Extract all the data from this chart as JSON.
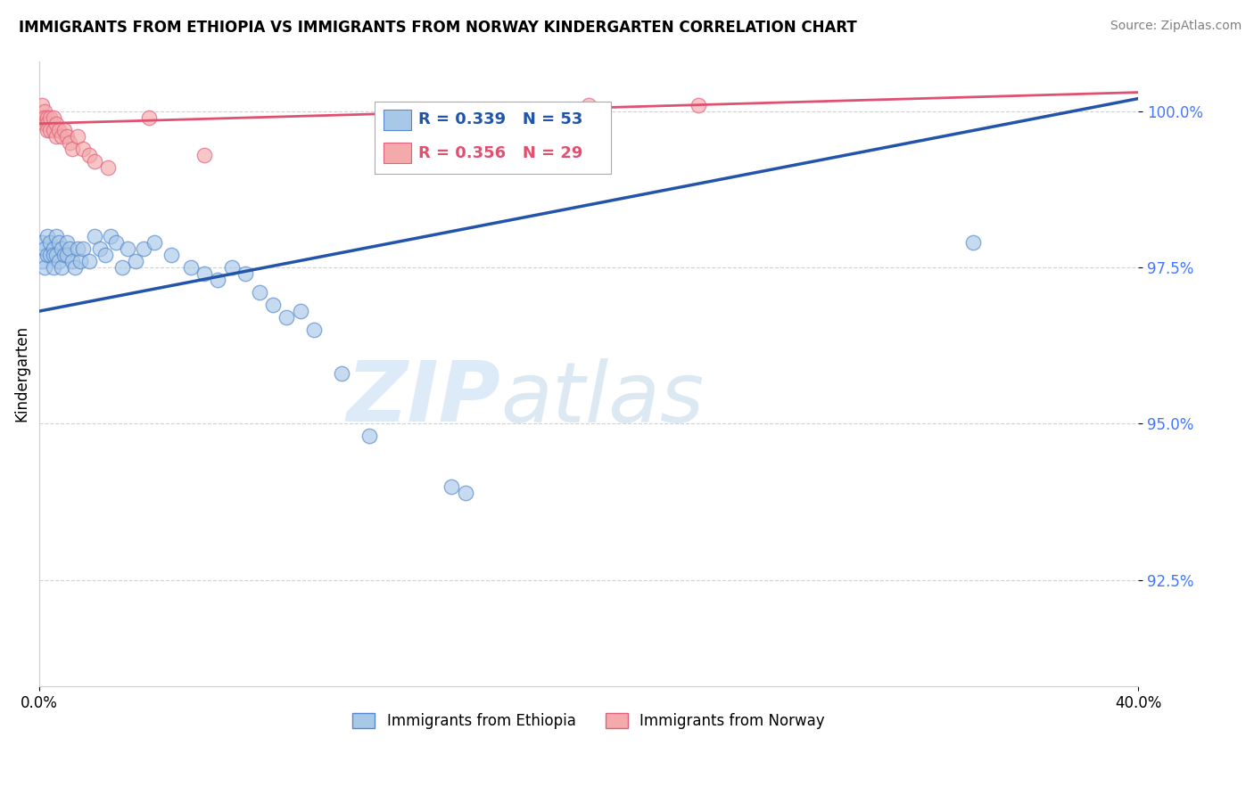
{
  "title": "IMMIGRANTS FROM ETHIOPIA VS IMMIGRANTS FROM NORWAY KINDERGARTEN CORRELATION CHART",
  "source": "Source: ZipAtlas.com",
  "ylabel": "Kindergarten",
  "xlim": [
    0.0,
    0.4
  ],
  "ylim": [
    0.908,
    1.008
  ],
  "yticks": [
    0.925,
    0.95,
    0.975,
    1.0
  ],
  "ytick_labels": [
    "92.5%",
    "95.0%",
    "97.5%",
    "100.0%"
  ],
  "legend_R_blue": "R = 0.339",
  "legend_N_blue": "N = 53",
  "legend_R_pink": "R = 0.356",
  "legend_N_pink": "N = 29",
  "legend_label_blue": "Immigrants from Ethiopia",
  "legend_label_pink": "Immigrants from Norway",
  "color_blue": "#A8C8E8",
  "color_pink": "#F4AAAA",
  "edge_blue": "#5588CC",
  "edge_pink": "#E06080",
  "trendline_color_blue": "#2255AA",
  "trendline_color_pink": "#E05070",
  "watermark_zip": "ZIP",
  "watermark_atlas": "atlas",
  "blue_trend_x0": 0.0,
  "blue_trend_y0": 0.968,
  "blue_trend_x1": 0.4,
  "blue_trend_y1": 1.002,
  "pink_trend_x0": 0.0,
  "pink_trend_y0": 0.998,
  "pink_trend_x1": 0.4,
  "pink_trend_y1": 1.003,
  "blue_x": [
    0.001,
    0.001,
    0.002,
    0.002,
    0.003,
    0.003,
    0.004,
    0.004,
    0.005,
    0.005,
    0.005,
    0.006,
    0.006,
    0.007,
    0.007,
    0.008,
    0.008,
    0.009,
    0.01,
    0.01,
    0.011,
    0.012,
    0.013,
    0.014,
    0.015,
    0.016,
    0.018,
    0.02,
    0.022,
    0.024,
    0.026,
    0.028,
    0.03,
    0.032,
    0.035,
    0.038,
    0.042,
    0.048,
    0.055,
    0.06,
    0.065,
    0.07,
    0.075,
    0.08,
    0.085,
    0.09,
    0.095,
    0.1,
    0.11,
    0.12,
    0.15,
    0.155,
    0.34
  ],
  "blue_y": [
    0.979,
    0.976,
    0.978,
    0.975,
    0.98,
    0.977,
    0.979,
    0.977,
    0.978,
    0.977,
    0.975,
    0.98,
    0.977,
    0.979,
    0.976,
    0.978,
    0.975,
    0.977,
    0.979,
    0.977,
    0.978,
    0.976,
    0.975,
    0.978,
    0.976,
    0.978,
    0.976,
    0.98,
    0.978,
    0.977,
    0.98,
    0.979,
    0.975,
    0.978,
    0.976,
    0.978,
    0.979,
    0.977,
    0.975,
    0.974,
    0.973,
    0.975,
    0.974,
    0.971,
    0.969,
    0.967,
    0.968,
    0.965,
    0.958,
    0.948,
    0.94,
    0.939,
    0.979
  ],
  "pink_x": [
    0.001,
    0.001,
    0.002,
    0.002,
    0.002,
    0.003,
    0.003,
    0.003,
    0.004,
    0.004,
    0.005,
    0.005,
    0.006,
    0.006,
    0.007,
    0.008,
    0.009,
    0.01,
    0.011,
    0.012,
    0.014,
    0.016,
    0.018,
    0.02,
    0.025,
    0.04,
    0.06,
    0.2,
    0.24
  ],
  "pink_y": [
    1.001,
    0.999,
    1.0,
    0.999,
    0.998,
    0.999,
    0.998,
    0.997,
    0.999,
    0.997,
    0.999,
    0.997,
    0.998,
    0.996,
    0.997,
    0.996,
    0.997,
    0.996,
    0.995,
    0.994,
    0.996,
    0.994,
    0.993,
    0.992,
    0.991,
    0.999,
    0.993,
    1.001,
    1.001
  ]
}
